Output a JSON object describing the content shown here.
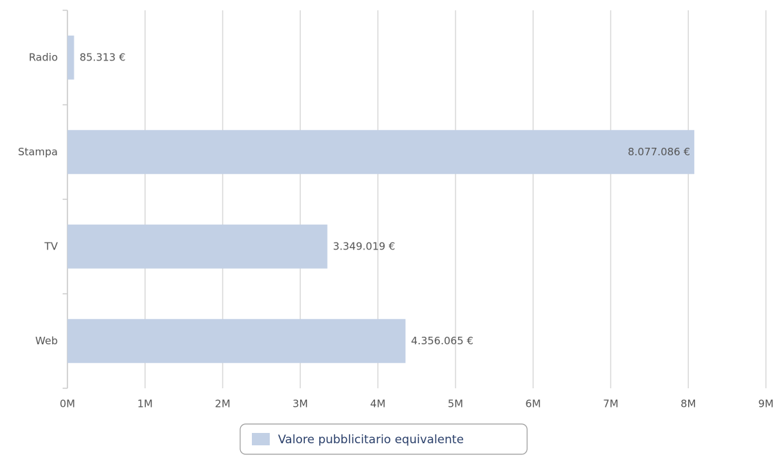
{
  "chart_data": {
    "type": "bar",
    "orientation": "horizontal",
    "categories": [
      "Radio",
      "Stampa",
      "TV",
      "Web"
    ],
    "series": [
      {
        "name": "Valore pubblicitario equivalente",
        "color": "#c2d0e5",
        "values": [
          85313,
          8077086,
          3349019,
          4356065
        ],
        "value_labels": [
          "85.313 €",
          "8.077.086 €",
          "3.349.019 €",
          "4.356.065 €"
        ]
      }
    ],
    "xlim": [
      0,
      9000000
    ],
    "xticks": [
      {
        "value": 0,
        "label": "0M"
      },
      {
        "value": 1000000,
        "label": "1M"
      },
      {
        "value": 2000000,
        "label": "2M"
      },
      {
        "value": 3000000,
        "label": "3M"
      },
      {
        "value": 4000000,
        "label": "4M"
      },
      {
        "value": 5000000,
        "label": "5M"
      },
      {
        "value": 6000000,
        "label": "6M"
      },
      {
        "value": 7000000,
        "label": "7M"
      },
      {
        "value": 8000000,
        "label": "8M"
      },
      {
        "value": 9000000,
        "label": "9M"
      }
    ],
    "grid": true,
    "legend": "bottom"
  }
}
